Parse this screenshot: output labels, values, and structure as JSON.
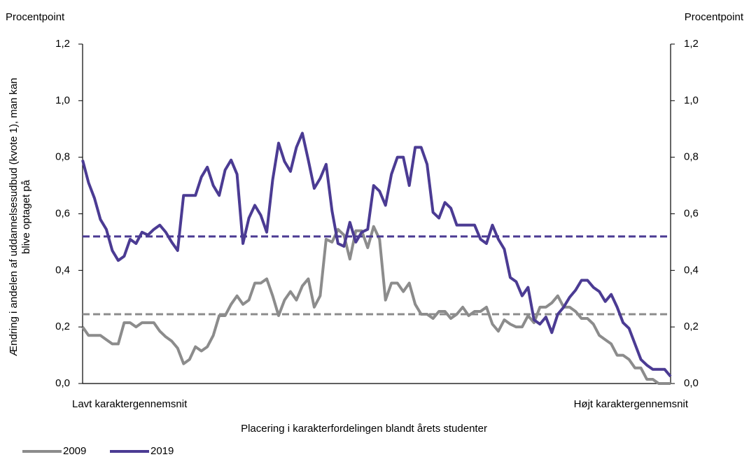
{
  "chart_data": {
    "type": "line",
    "y_unit": "Procentpoint",
    "y2_unit": "Procentpoint",
    "ylabel_lines": [
      "Ændring i andelen af uddannelsesudbud (kvote 1), man kan",
      "blive optaget på"
    ],
    "xlabel": "Placering i karakterfordelingen blandt årets studenter",
    "x_start_label": "Lavt karaktergennemsnit",
    "x_end_label": "Højt karaktergennemsnit",
    "ylim": [
      0,
      1.2
    ],
    "y2lim": [
      0,
      1.2
    ],
    "yticks": [
      {
        "value": 0,
        "label": "0,0"
      },
      {
        "value": 0.2,
        "label": "0,2"
      },
      {
        "value": 0.4,
        "label": "0,4"
      },
      {
        "value": 0.6,
        "label": "0,6"
      },
      {
        "value": 0.8,
        "label": "0,8"
      },
      {
        "value": 1.0,
        "label": "1,0"
      },
      {
        "value": 1.2,
        "label": "1,2"
      }
    ],
    "y2ticks": [
      {
        "value": 0,
        "label": "0,0"
      },
      {
        "value": 0.2,
        "label": "0,2"
      },
      {
        "value": 0.4,
        "label": "0,4"
      },
      {
        "value": 0.6,
        "label": "0,6"
      },
      {
        "value": 0.8,
        "label": "0,8"
      },
      {
        "value": 1.0,
        "label": "1,0"
      },
      {
        "value": 1.2,
        "label": "1,2"
      }
    ],
    "legend": "bottom-left",
    "series": [
      {
        "name": "2009",
        "color": "#8c8c8c",
        "mean": 0.245,
        "values": [
          0.2,
          0.17,
          0.17,
          0.17,
          0.155,
          0.14,
          0.14,
          0.215,
          0.215,
          0.2,
          0.215,
          0.215,
          0.215,
          0.185,
          0.165,
          0.15,
          0.125,
          0.07,
          0.085,
          0.13,
          0.115,
          0.13,
          0.17,
          0.24,
          0.24,
          0.28,
          0.31,
          0.28,
          0.295,
          0.355,
          0.355,
          0.37,
          0.31,
          0.24,
          0.295,
          0.325,
          0.295,
          0.345,
          0.37,
          0.27,
          0.31,
          0.51,
          0.5,
          0.545,
          0.525,
          0.44,
          0.54,
          0.54,
          0.48,
          0.555,
          0.51,
          0.295,
          0.355,
          0.355,
          0.325,
          0.355,
          0.28,
          0.245,
          0.245,
          0.23,
          0.255,
          0.255,
          0.23,
          0.245,
          0.27,
          0.24,
          0.255,
          0.255,
          0.27,
          0.21,
          0.185,
          0.225,
          0.21,
          0.2,
          0.2,
          0.24,
          0.215,
          0.27,
          0.27,
          0.285,
          0.31,
          0.27,
          0.27,
          0.255,
          0.23,
          0.23,
          0.21,
          0.17,
          0.155,
          0.14,
          0.1,
          0.1,
          0.085,
          0.055,
          0.055,
          0.015,
          0.015,
          0,
          0,
          0
        ]
      },
      {
        "name": "2019",
        "color": "#4b3b93",
        "mean": 0.52,
        "values": [
          0.79,
          0.71,
          0.655,
          0.58,
          0.545,
          0.47,
          0.435,
          0.45,
          0.51,
          0.495,
          0.535,
          0.525,
          0.545,
          0.56,
          0.535,
          0.5,
          0.47,
          0.665,
          0.665,
          0.665,
          0.73,
          0.765,
          0.7,
          0.665,
          0.755,
          0.79,
          0.74,
          0.495,
          0.585,
          0.63,
          0.595,
          0.535,
          0.72,
          0.85,
          0.785,
          0.75,
          0.835,
          0.885,
          0.79,
          0.69,
          0.725,
          0.775,
          0.61,
          0.495,
          0.485,
          0.57,
          0.5,
          0.535,
          0.545,
          0.7,
          0.68,
          0.63,
          0.74,
          0.8,
          0.8,
          0.7,
          0.835,
          0.835,
          0.775,
          0.605,
          0.585,
          0.64,
          0.62,
          0.56,
          0.56,
          0.56,
          0.56,
          0.51,
          0.495,
          0.56,
          0.51,
          0.475,
          0.375,
          0.36,
          0.31,
          0.34,
          0.225,
          0.21,
          0.235,
          0.18,
          0.245,
          0.27,
          0.305,
          0.33,
          0.365,
          0.365,
          0.34,
          0.325,
          0.29,
          0.315,
          0.27,
          0.215,
          0.195,
          0.14,
          0.085,
          0.065,
          0.05,
          0.05,
          0.05,
          0.025
        ]
      }
    ]
  }
}
